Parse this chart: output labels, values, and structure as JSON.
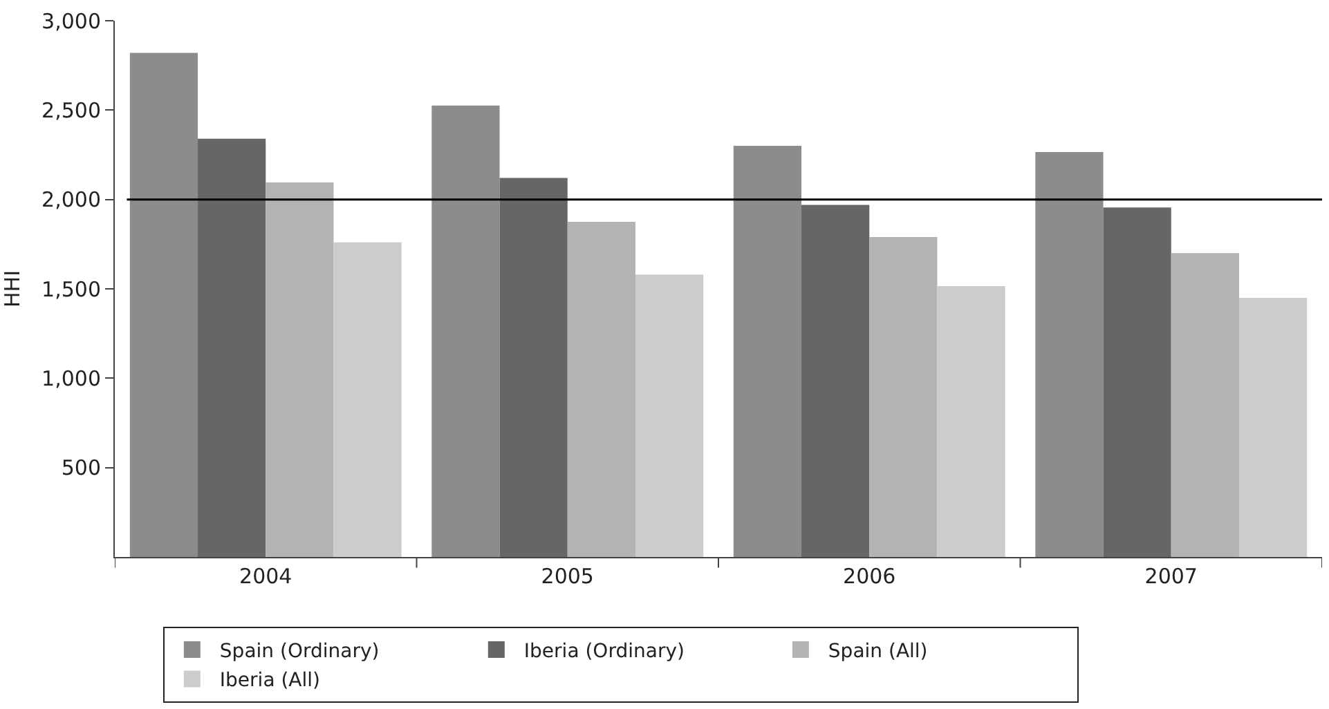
{
  "chart_data": {
    "type": "bar",
    "ylabel": "HHI",
    "categories": [
      "2004",
      "2005",
      "2006",
      "2007"
    ],
    "series": [
      {
        "name": "Spain (Ordinary)",
        "color": "#8c8c8c",
        "values": [
          2820,
          2525,
          2300,
          2265
        ]
      },
      {
        "name": "Iberia (Ordinary)",
        "color": "#666666",
        "values": [
          2340,
          2120,
          1970,
          1955
        ]
      },
      {
        "name": "Spain (All)",
        "color": "#b3b3b3",
        "values": [
          2095,
          1875,
          1790,
          1700
        ]
      },
      {
        "name": "Iberia (All)",
        "color": "#cccccc",
        "values": [
          1760,
          1580,
          1515,
          1450
        ]
      }
    ],
    "ylim": [
      0,
      3000
    ],
    "yticks": [
      500,
      {
        "value": 1000,
        "label": "1,000"
      },
      {
        "value": 1500,
        "label": "1,500"
      },
      {
        "value": 2000,
        "label": "2,000"
      },
      {
        "value": 2500,
        "label": "2,500"
      },
      {
        "value": 3000,
        "label": "3,000"
      }
    ],
    "ref_lines": [
      {
        "axis": "y",
        "value": 2000,
        "color": "#000000"
      }
    ],
    "legend": "bottom"
  }
}
